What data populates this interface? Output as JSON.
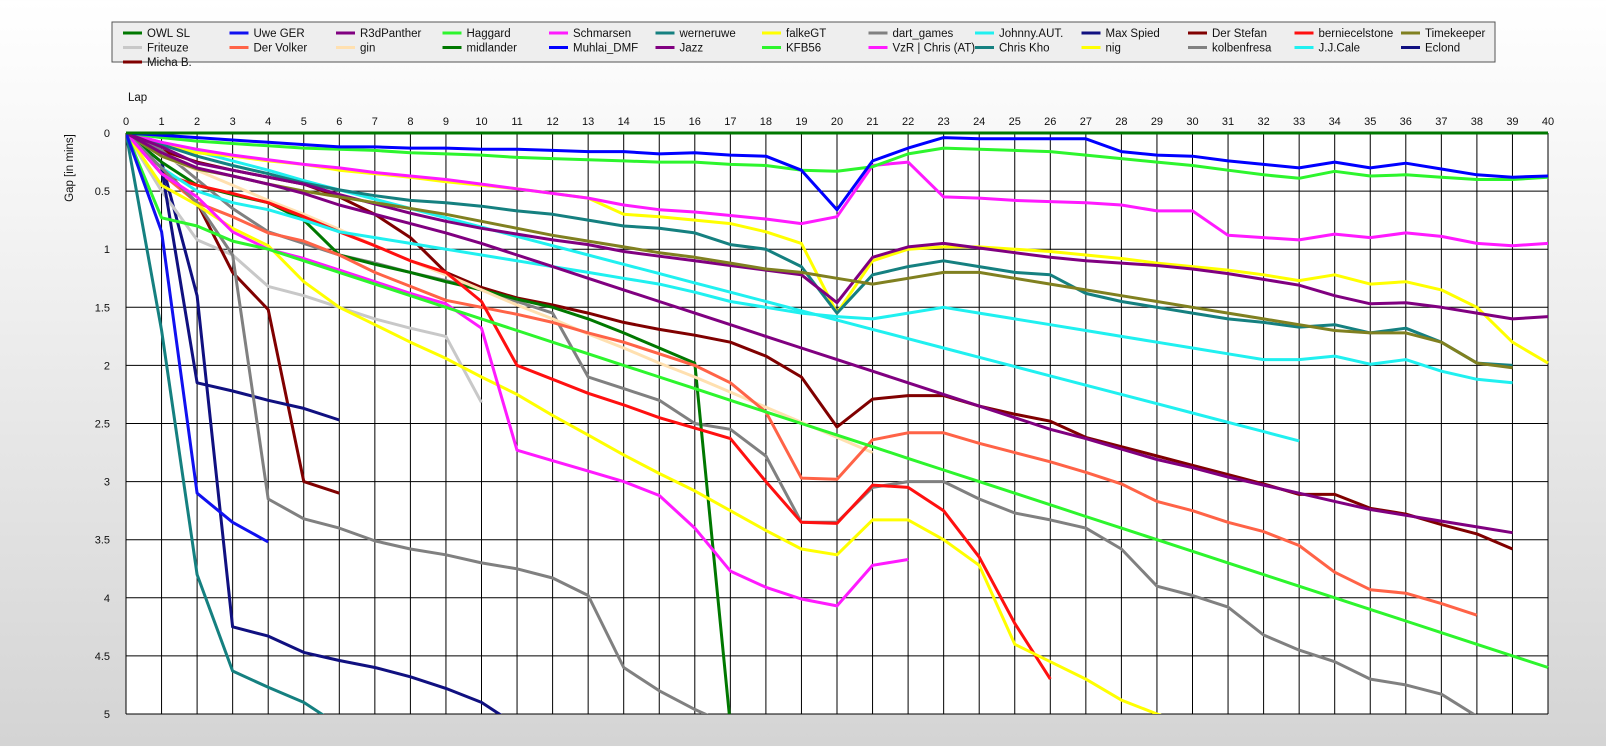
{
  "chart_data": {
    "type": "line",
    "xlabel": "Lap",
    "ylabel": "Gap [in mins]",
    "xlim": [
      0,
      40
    ],
    "ylim": [
      0,
      5
    ],
    "x_ticks": [
      0,
      1,
      2,
      3,
      4,
      5,
      6,
      7,
      8,
      9,
      10,
      11,
      12,
      13,
      14,
      15,
      16,
      17,
      18,
      19,
      20,
      21,
      22,
      23,
      24,
      25,
      26,
      27,
      28,
      29,
      30,
      31,
      32,
      33,
      34,
      35,
      36,
      37,
      38,
      39,
      40
    ],
    "y_ticks": [
      0,
      0.5,
      1,
      1.5,
      2,
      2.5,
      3,
      3.5,
      4,
      4.5,
      5
    ],
    "y_inverted": true,
    "grid": true,
    "legend_position": "top",
    "series": [
      {
        "name": "OWL SL",
        "color": "#007800",
        "y": [
          0,
          0,
          0,
          0,
          0,
          0,
          0,
          0,
          0,
          0,
          0,
          0,
          0,
          0,
          0,
          0,
          0,
          0,
          0,
          0,
          0,
          0,
          0,
          0,
          0,
          0,
          0,
          0,
          0,
          0,
          0,
          0,
          0,
          0,
          0,
          0,
          0,
          0,
          0,
          0,
          0
        ]
      },
      {
        "name": "Uwe GER",
        "color": "#1010f0",
        "y": [
          0,
          0.85,
          3.1,
          3.35,
          3.52
        ]
      },
      {
        "name": "R3dPanther",
        "color": "#800080",
        "y": [
          0,
          0.17,
          0.3,
          0.37,
          0.44,
          0.52,
          0.62,
          0.7,
          0.78,
          0.86,
          0.95,
          1.05,
          1.15,
          1.25,
          1.35,
          1.45,
          1.55,
          1.65,
          1.75,
          1.85,
          1.95,
          2.05,
          2.15,
          2.25,
          2.35,
          2.45,
          2.55,
          2.63,
          2.72,
          2.81,
          2.88,
          2.96,
          3.03,
          3.1,
          3.17,
          3.24,
          3.29,
          3.34,
          3.39,
          3.44
        ]
      },
      {
        "name": "Haggard",
        "color": "#2df52d",
        "y": [
          0,
          0.73,
          0.8,
          0.93,
          1.0,
          1.1,
          1.2,
          1.3,
          1.4,
          1.5,
          1.6,
          1.7,
          1.8,
          1.9,
          2.0,
          2.1,
          2.2,
          2.3,
          2.4,
          2.5,
          2.6,
          2.7,
          2.8,
          2.9,
          3.0,
          3.1,
          3.2,
          3.3,
          3.4,
          3.5,
          3.6,
          3.7,
          3.8,
          3.9,
          4.0,
          4.1,
          4.2,
          4.3,
          4.4,
          4.5,
          4.6
        ]
      },
      {
        "name": "Schmarsen",
        "color": "#ff1aff",
        "y": [
          0,
          0.35,
          0.55,
          0.85,
          1.0,
          1.08,
          1.18,
          1.28,
          1.38,
          1.47,
          1.68,
          2.73,
          2.82,
          2.91,
          3.0,
          3.12,
          3.4,
          3.77,
          3.91,
          4.01,
          4.07,
          3.72,
          3.67
        ]
      },
      {
        "name": "werneruwe",
        "color": "#158080",
        "y": [
          0,
          1.7,
          3.8,
          4.63,
          4.77,
          4.9,
          5.1
        ]
      },
      {
        "name": "falkeGT",
        "color": "#ffff00",
        "y": [
          0,
          0.45,
          0.62,
          0.82,
          0.97,
          1.28,
          1.5,
          1.65,
          1.8,
          1.94,
          2.1,
          2.25,
          2.43,
          2.6,
          2.77,
          2.93,
          3.08,
          3.25,
          3.42,
          3.58,
          3.63,
          3.33,
          3.33,
          3.5,
          3.72,
          4.4,
          4.55,
          4.7,
          4.88,
          5.0,
          5.1
        ]
      },
      {
        "name": "dart_games",
        "color": "#808080",
        "y": [
          0,
          0.3,
          0.6,
          1.05,
          3.15,
          3.32,
          3.4,
          3.51,
          3.58,
          3.63,
          3.7,
          3.75,
          3.83,
          3.98,
          4.6,
          4.8,
          4.96,
          5.1
        ]
      },
      {
        "name": "Johnny.AUT.",
        "color": "#20f0f0",
        "y": [
          0,
          0.3,
          0.5,
          0.6,
          0.66,
          0.75,
          0.85,
          0.9,
          0.95,
          1.0,
          1.05,
          1.1,
          1.15,
          1.2,
          1.25,
          1.3,
          1.37,
          1.45,
          1.5,
          1.55,
          1.58,
          1.6,
          1.55,
          1.5,
          1.55,
          1.6,
          1.65,
          1.7,
          1.75,
          1.8,
          1.85,
          1.9,
          1.95,
          1.95,
          1.92,
          1.99,
          1.95,
          2.05,
          2.12,
          2.15
        ]
      },
      {
        "name": "Max Spied",
        "color": "#101080",
        "y": [
          0,
          0.3,
          2.15,
          2.22,
          2.3,
          2.37,
          2.47
        ]
      },
      {
        "name": "Der Stefan",
        "color": "#800000",
        "y": [
          0,
          0.3,
          0.6,
          1.2,
          1.52,
          3.0,
          3.1
        ]
      },
      {
        "name": "berniecelstone",
        "color": "#ff1010",
        "y": [
          0,
          0.35,
          0.45,
          0.52,
          0.6,
          0.72,
          0.85,
          0.97,
          1.1,
          1.2,
          1.45,
          2.0,
          2.12,
          2.24,
          2.34,
          2.45,
          2.54,
          2.63,
          3.0,
          3.35,
          3.36,
          3.03,
          3.05,
          3.25,
          3.65,
          4.22,
          4.7
        ]
      },
      {
        "name": "Timekeeper",
        "color": "#808020",
        "y": [
          0,
          0.2,
          0.31,
          0.37,
          0.44,
          0.5,
          0.55,
          0.6,
          0.65,
          0.7,
          0.76,
          0.82,
          0.88,
          0.93,
          0.98,
          1.03,
          1.07,
          1.12,
          1.17,
          1.2,
          1.25,
          1.3,
          1.25,
          1.2,
          1.2,
          1.25,
          1.3,
          1.35,
          1.4,
          1.45,
          1.5,
          1.55,
          1.6,
          1.65,
          1.7,
          1.72,
          1.72,
          1.8,
          1.98,
          2.02
        ]
      },
      {
        "name": "Friteuze",
        "color": "#c8c8c8",
        "y": [
          0,
          0.5,
          0.92,
          1.05,
          1.32,
          1.4,
          1.5,
          1.6,
          1.68,
          1.75,
          2.32
        ]
      },
      {
        "name": "Der Volker",
        "color": "#ff6347",
        "y": [
          0,
          0.35,
          0.6,
          0.72,
          0.86,
          0.93,
          1.05,
          1.2,
          1.32,
          1.44,
          1.5,
          1.56,
          1.63,
          1.72,
          1.8,
          1.9,
          2.0,
          2.15,
          2.4,
          2.97,
          2.98,
          2.64,
          2.58,
          2.58,
          2.67,
          2.75,
          2.83,
          2.92,
          3.02,
          3.17,
          3.25,
          3.35,
          3.43,
          3.55,
          3.78,
          3.93,
          3.96,
          4.05,
          4.15
        ]
      },
      {
        "name": "gin",
        "color": "#ffe0b0",
        "y": [
          0,
          0.2,
          0.32,
          0.45,
          0.58,
          0.7,
          0.83,
          0.97,
          1.1,
          1.22,
          1.35,
          1.48,
          1.6,
          1.73,
          1.85,
          1.98,
          2.1,
          2.23,
          2.36,
          2.49,
          2.62,
          2.75
        ]
      },
      {
        "name": "midlander",
        "color": "#007800",
        "y": [
          0,
          0.25,
          0.45,
          0.53,
          0.6,
          0.75,
          1.05,
          1.13,
          1.2,
          1.28,
          1.35,
          1.43,
          1.5,
          1.6,
          1.72,
          1.85,
          1.98,
          5.1
        ]
      },
      {
        "name": "Muhlai_DMF",
        "color": "#0000ff",
        "y": [
          0,
          0.02,
          0.04,
          0.06,
          0.08,
          0.1,
          0.12,
          0.12,
          0.13,
          0.13,
          0.14,
          0.14,
          0.15,
          0.16,
          0.16,
          0.18,
          0.17,
          0.19,
          0.2,
          0.32,
          0.66,
          0.24,
          0.13,
          0.04,
          0.05,
          0.05,
          0.05,
          0.05,
          0.16,
          0.19,
          0.2,
          0.24,
          0.27,
          0.3,
          0.25,
          0.3,
          0.26,
          0.31,
          0.36,
          0.38,
          0.37
        ]
      },
      {
        "name": "Jazz",
        "color": "#800080",
        "y": [
          0,
          0.12,
          0.26,
          0.32,
          0.38,
          0.44,
          0.53,
          0.61,
          0.69,
          0.76,
          0.82,
          0.87,
          0.92,
          0.96,
          1.02,
          1.06,
          1.1,
          1.14,
          1.18,
          1.22,
          1.46,
          1.07,
          0.98,
          0.95,
          0.99,
          1.03,
          1.07,
          1.1,
          1.12,
          1.14,
          1.17,
          1.21,
          1.26,
          1.31,
          1.4,
          1.47,
          1.46,
          1.5,
          1.55,
          1.6,
          1.58
        ]
      },
      {
        "name": "KFB56",
        "color": "#2df52d",
        "y": [
          0,
          0.04,
          0.07,
          0.09,
          0.11,
          0.13,
          0.14,
          0.15,
          0.17,
          0.18,
          0.19,
          0.21,
          0.22,
          0.23,
          0.24,
          0.25,
          0.25,
          0.27,
          0.28,
          0.32,
          0.33,
          0.29,
          0.18,
          0.13,
          0.14,
          0.15,
          0.16,
          0.19,
          0.22,
          0.25,
          0.28,
          0.32,
          0.36,
          0.39,
          0.33,
          0.37,
          0.36,
          0.38,
          0.4,
          0.4,
          0.38
        ]
      },
      {
        "name": "VzR | Chris (AT)",
        "color": "#ff1aff",
        "y": [
          0,
          0.08,
          0.14,
          0.19,
          0.23,
          0.27,
          0.3,
          0.34,
          0.37,
          0.4,
          0.44,
          0.48,
          0.52,
          0.56,
          0.62,
          0.66,
          0.68,
          0.71,
          0.74,
          0.78,
          0.72,
          0.28,
          0.25,
          0.55,
          0.56,
          0.58,
          0.59,
          0.6,
          0.62,
          0.67,
          0.67,
          0.88,
          0.9,
          0.92,
          0.87,
          0.9,
          0.86,
          0.89,
          0.95,
          0.97,
          0.95
        ]
      },
      {
        "name": "Chris Kho",
        "color": "#158080",
        "y": [
          0,
          0.1,
          0.2,
          0.28,
          0.35,
          0.43,
          0.49,
          0.54,
          0.58,
          0.6,
          0.63,
          0.67,
          0.7,
          0.75,
          0.8,
          0.82,
          0.86,
          0.96,
          1.0,
          1.15,
          1.55,
          1.22,
          1.15,
          1.1,
          1.15,
          1.2,
          1.22,
          1.38,
          1.45,
          1.5,
          1.55,
          1.6,
          1.63,
          1.67,
          1.65,
          1.72,
          1.68,
          1.8,
          1.98,
          2.0
        ]
      },
      {
        "name": "nig",
        "color": "#ffff00",
        "y": [
          0,
          0.1,
          0.17,
          0.2,
          0.24,
          0.27,
          0.32,
          0.35,
          0.38,
          0.42,
          0.45,
          0.48,
          0.52,
          0.56,
          0.7,
          0.72,
          0.75,
          0.78,
          0.85,
          0.95,
          1.55,
          1.1,
          1.0,
          0.98,
          0.98,
          1.0,
          1.02,
          1.05,
          1.08,
          1.12,
          1.15,
          1.18,
          1.22,
          1.27,
          1.22,
          1.3,
          1.28,
          1.35,
          1.5,
          1.8,
          1.98
        ]
      },
      {
        "name": "kolbenfresa",
        "color": "#808080",
        "y": [
          0,
          0.15,
          0.4,
          0.65,
          0.85,
          0.95,
          1.05,
          1.12,
          1.2,
          1.27,
          1.35,
          1.45,
          1.55,
          2.1,
          2.2,
          2.3,
          2.5,
          2.55,
          2.78,
          3.35,
          3.35,
          3.05,
          3.0,
          3.0,
          3.15,
          3.27,
          3.33,
          3.4,
          3.58,
          3.9,
          3.98,
          4.08,
          4.32,
          4.45,
          4.55,
          4.7,
          4.75,
          4.83,
          5.02
        ]
      },
      {
        "name": "J.J.Cale",
        "color": "#20f0f0",
        "y": [
          0,
          0.08,
          0.16,
          0.24,
          0.32,
          0.41,
          0.49,
          0.57,
          0.65,
          0.73,
          0.81,
          0.89,
          0.97,
          1.05,
          1.13,
          1.21,
          1.29,
          1.37,
          1.45,
          1.53,
          1.61,
          1.69,
          1.77,
          1.85,
          1.93,
          2.01,
          2.09,
          2.17,
          2.25,
          2.33,
          2.41,
          2.49,
          2.57,
          2.65
        ]
      },
      {
        "name": "Eclond",
        "color": "#101080",
        "y": [
          0,
          0.25,
          1.4,
          4.25,
          4.33,
          4.47,
          4.54,
          4.6,
          4.68,
          4.78,
          4.9,
          5.1
        ]
      },
      {
        "name": "Micha B.",
        "color": "#800000",
        "y": [
          0,
          0.15,
          0.25,
          0.32,
          0.38,
          0.44,
          0.55,
          0.7,
          0.9,
          1.2,
          1.33,
          1.42,
          1.48,
          1.55,
          1.63,
          1.69,
          1.74,
          1.8,
          1.92,
          2.1,
          2.53,
          2.29,
          2.26,
          2.26,
          2.35,
          2.42,
          2.48,
          2.62,
          2.7,
          2.78,
          2.86,
          2.94,
          3.02,
          3.11,
          3.11,
          3.23,
          3.28,
          3.37,
          3.45,
          3.58
        ]
      }
    ]
  }
}
